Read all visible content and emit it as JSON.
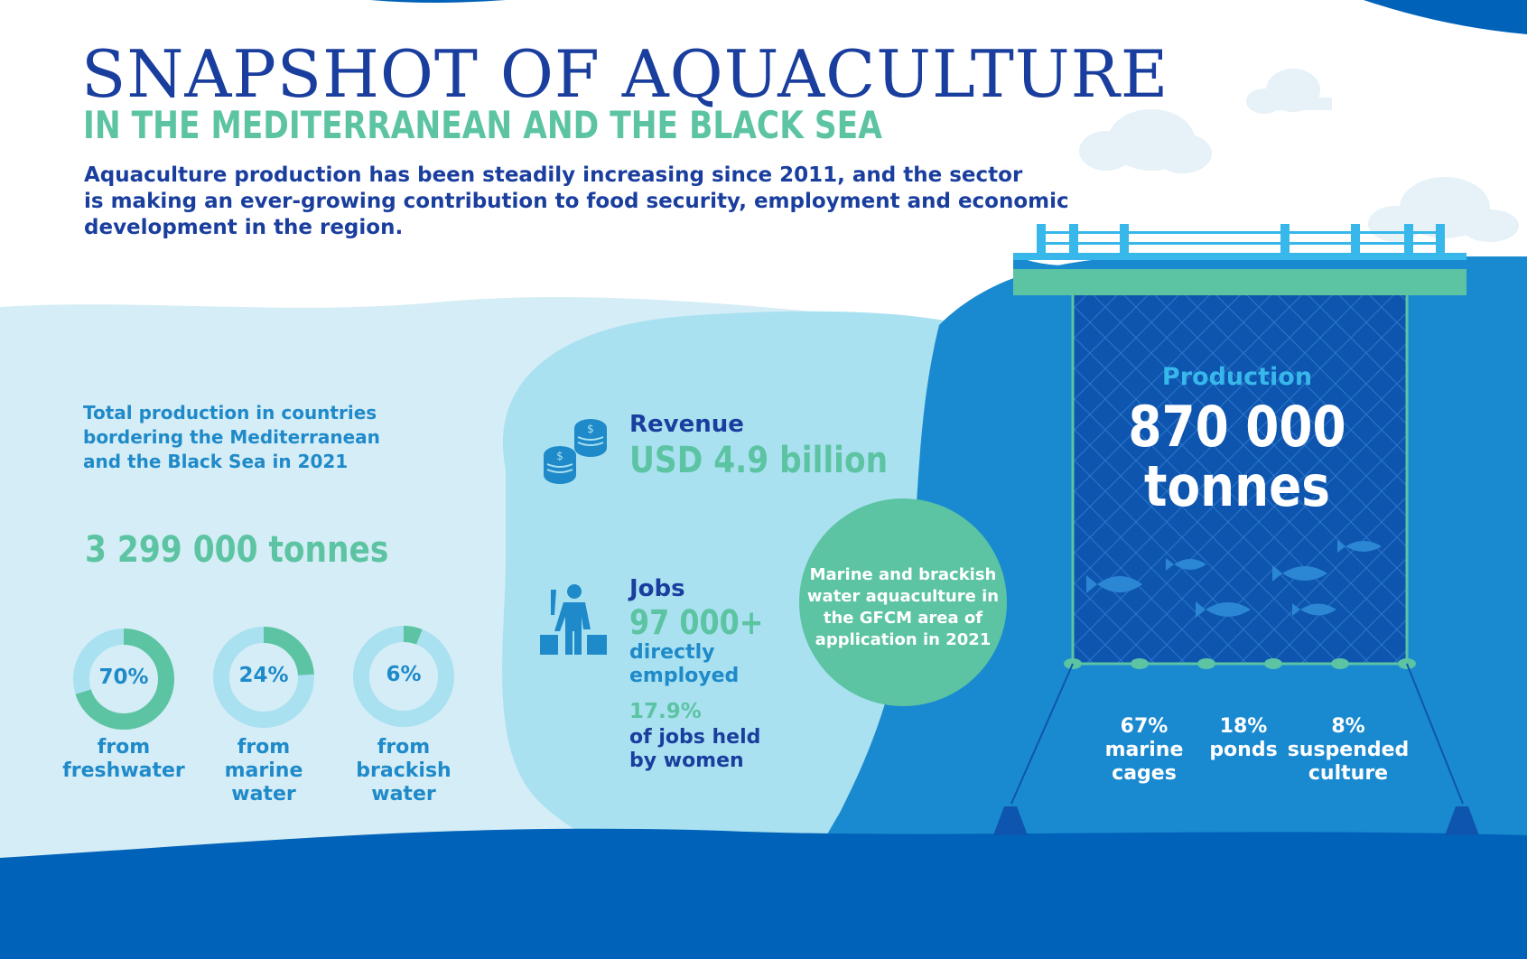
{
  "header": {
    "title": "SNAPSHOT OF AQUACULTURE",
    "subtitle": "IN THE MEDITERRANEAN AND THE BLACK SEA",
    "intro_lines": [
      "Aquaculture production has been steadily increasing since 2011, and the sector",
      "is making an ever-growing contribution to food security, employment and economic",
      "development in the region."
    ]
  },
  "total": {
    "label_lines": [
      "Total production in countries",
      "bordering the Mediterranean",
      "and the Black Sea in 2021"
    ],
    "value": "3 299 000 tonnes",
    "breakdown": [
      {
        "percent": "70%",
        "fraction": 0.7,
        "caption_lines": [
          "from",
          "freshwater"
        ]
      },
      {
        "percent": "24%",
        "fraction": 0.24,
        "caption_lines": [
          "from",
          "marine",
          "water"
        ]
      },
      {
        "percent": "6%",
        "fraction": 0.06,
        "caption_lines": [
          "from",
          "brackish",
          "water"
        ]
      }
    ]
  },
  "revenue": {
    "label": "Revenue",
    "value": "USD 4.9 billion",
    "icon": "coins-icon"
  },
  "jobs": {
    "label": "Jobs",
    "value": "97 000+",
    "value_caption_lines": [
      "directly",
      "employed"
    ],
    "women_percent": "17.9%",
    "women_caption_lines": [
      "of jobs held",
      "by women"
    ],
    "icon": "fish-farmer-icon"
  },
  "marine_note": {
    "lines": [
      "Marine and brackish",
      "water aquaculture in",
      "the GFCM area of",
      "application in 2021"
    ]
  },
  "production": {
    "label": "Production",
    "value_lines": [
      "870 000",
      "tonnes"
    ],
    "breakdown": [
      {
        "percent": "67%",
        "caption_lines": [
          "marine",
          "cages"
        ]
      },
      {
        "percent": "18%",
        "caption_lines": [
          "ponds"
        ]
      },
      {
        "percent": "8%",
        "caption_lines": [
          "suspended",
          "culture"
        ]
      }
    ]
  },
  "colors": {
    "navy": "#1a3e9e",
    "green": "#5cc4a2",
    "blue": "#1f8ac9",
    "light_blue": "#d5edf6",
    "mid_blue": "#a9e1f1",
    "deep_blue": "#0062b8"
  }
}
